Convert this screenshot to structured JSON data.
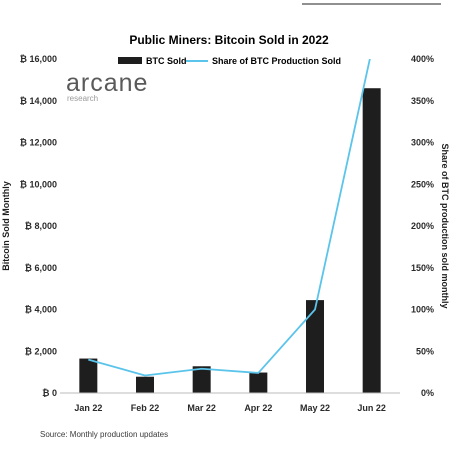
{
  "chart_data": {
    "type": "bar",
    "title": "Public Miners: Bitcoin Sold in 2022",
    "categories": [
      "Jan 22",
      "Feb 22",
      "Mar 22",
      "Apr 22",
      "May 22",
      "Jun 22"
    ],
    "series": [
      {
        "name": "BTC Sold",
        "type": "bar",
        "axis": "left",
        "color": "#1e1e1e",
        "values": [
          1650,
          780,
          1280,
          980,
          4450,
          14600
        ]
      },
      {
        "name": "Share of BTC Production Sold",
        "type": "line",
        "axis": "right",
        "color": "#5bc4ea",
        "values": [
          40,
          21,
          29,
          24,
          100,
          410
        ]
      }
    ],
    "ylabel": "Bitcoin Sold Monthly",
    "ylabel_right": "Share of BTC production sold monthly",
    "ylim": [
      0,
      16000
    ],
    "ylim_right": [
      0,
      400
    ],
    "yticks": [
      "₿ 16,000",
      "₿ 14,000",
      "₿ 12,000",
      "₿ 10,000",
      "₿ 8,000",
      "₿ 6,000",
      "₿ 4,000",
      "₿ 2,000",
      "₿ 0"
    ],
    "yticks_right": [
      "400%",
      "350%",
      "300%",
      "250%",
      "200%",
      "150%",
      "100%",
      "50%",
      "0%"
    ],
    "legend_position": "top-center",
    "grid": false
  },
  "logo": {
    "name": "arcane",
    "sub": "research"
  },
  "source": "Source: Monthly production updates"
}
